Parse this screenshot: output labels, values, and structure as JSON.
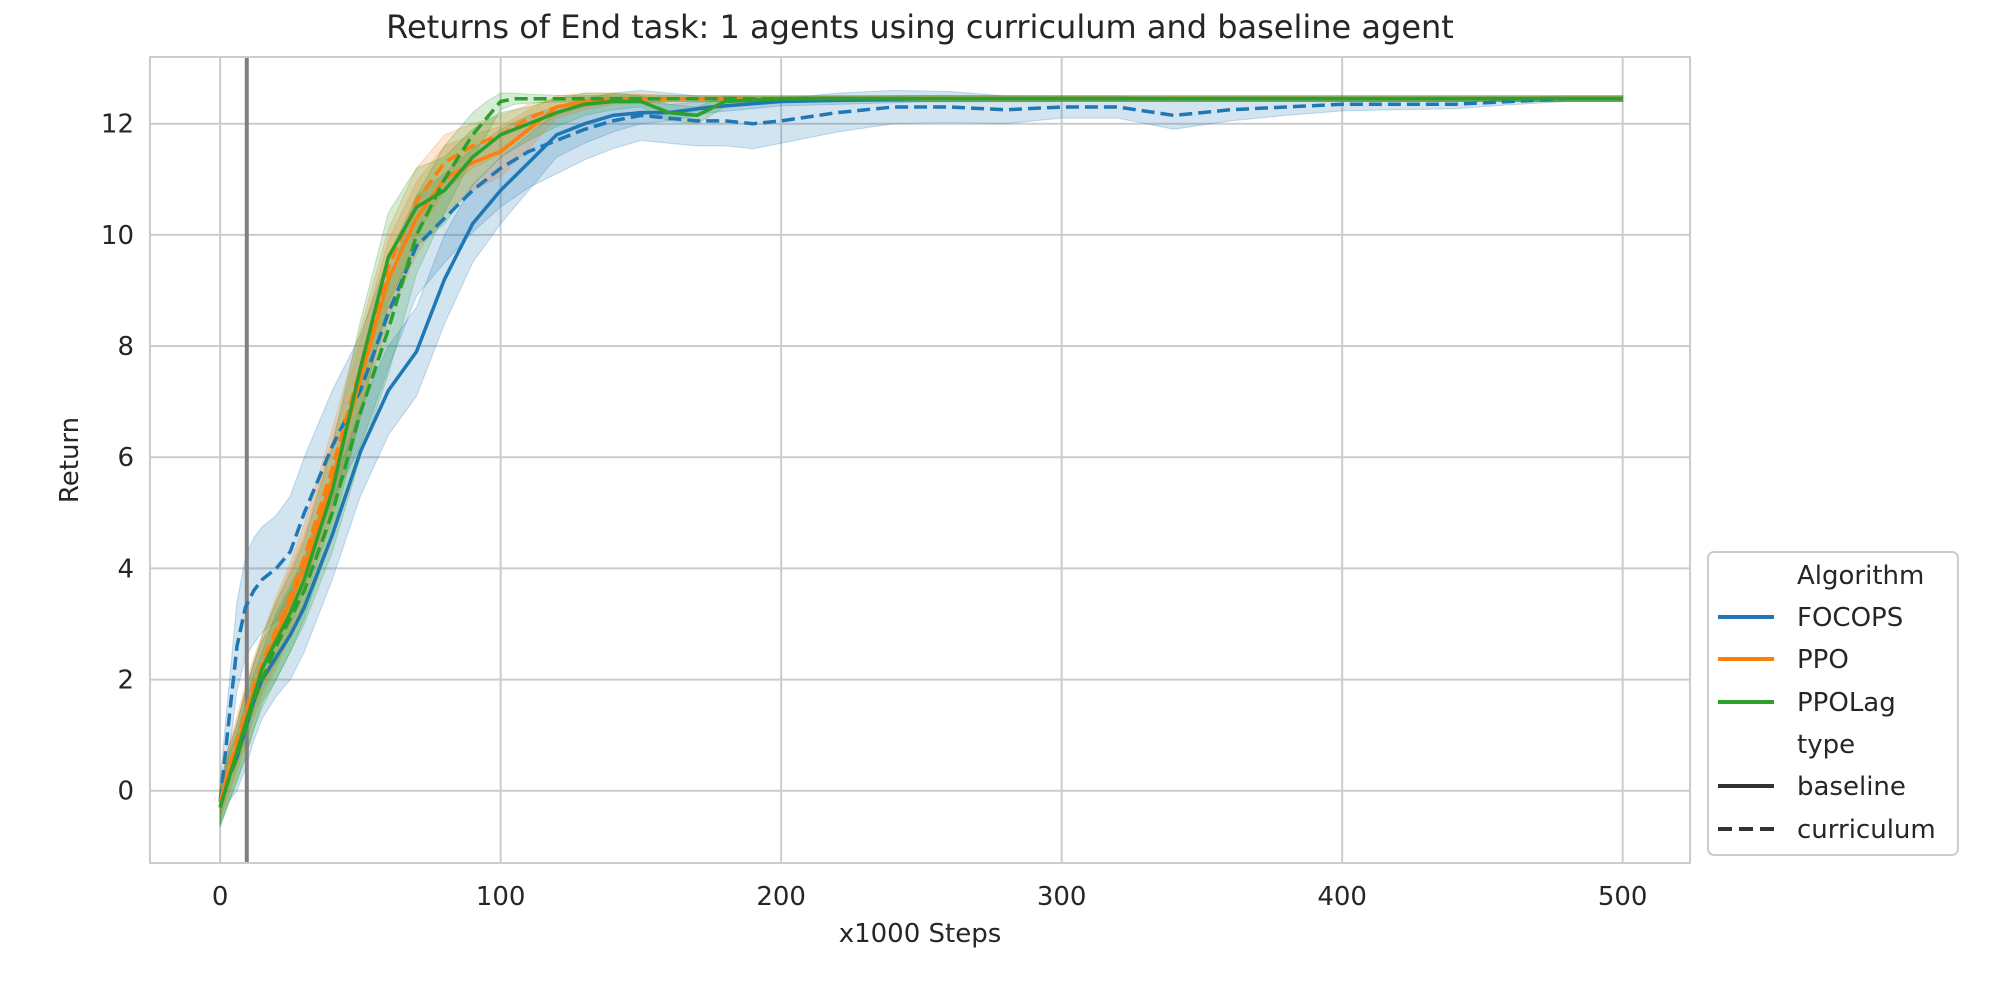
{
  "colors": {
    "FOCOPS": "#1f77b4",
    "PPO": "#ff7f0e",
    "PPOLag": "#2ca02c",
    "vline": "#808080",
    "legend_line": "#333333"
  },
  "chart_data": {
    "type": "line",
    "title": "Returns of End task: 1 agents using curriculum and baseline agent",
    "xlabel": "x1000 Steps",
    "ylabel": "Return",
    "xlim": [
      -25,
      524
    ],
    "ylim": [
      -1.3,
      13.2
    ],
    "xticks": [
      0,
      100,
      200,
      300,
      400,
      500
    ],
    "yticks": [
      0,
      2,
      4,
      6,
      8,
      10,
      12
    ],
    "grid": true,
    "legend_position": "lower-right",
    "vline_x": 9.5,
    "legend": {
      "hue_title": "Algorithm",
      "style_title": "type",
      "hue_entries": [
        "FOCOPS",
        "PPO",
        "PPOLag"
      ],
      "style_entries": [
        "baseline",
        "curriculum"
      ]
    },
    "series": [
      {
        "name": "FOCOPS",
        "type": "baseline",
        "x": [
          0,
          3,
          6,
          9,
          12,
          15,
          20,
          25,
          30,
          40,
          50,
          60,
          70,
          80,
          90,
          100,
          110,
          120,
          130,
          140,
          150,
          160,
          175,
          200,
          250,
          300,
          350,
          400,
          450,
          500
        ],
        "y": [
          -0.3,
          0.3,
          0.6,
          1.1,
          1.6,
          2.0,
          2.4,
          2.8,
          3.3,
          4.6,
          6.1,
          7.2,
          7.9,
          9.2,
          10.2,
          10.8,
          11.3,
          11.8,
          12.0,
          12.15,
          12.2,
          12.2,
          12.3,
          12.4,
          12.45,
          12.45,
          12.45,
          12.45,
          12.45,
          12.45
        ],
        "band": [
          0.35,
          0.5,
          0.6,
          0.7,
          0.7,
          0.7,
          0.7,
          0.8,
          0.8,
          0.8,
          0.8,
          0.8,
          0.8,
          0.8,
          0.7,
          0.6,
          0.5,
          0.4,
          0.35,
          0.3,
          0.2,
          0.15,
          0.1,
          0.08,
          0.06,
          0.05,
          0.05,
          0.05,
          0.05,
          0.05
        ]
      },
      {
        "name": "FOCOPS",
        "type": "curriculum",
        "x": [
          0,
          3,
          6,
          9,
          12,
          15,
          20,
          25,
          30,
          40,
          50,
          60,
          70,
          80,
          90,
          100,
          110,
          120,
          130,
          140,
          150,
          160,
          170,
          180,
          190,
          200,
          220,
          240,
          260,
          280,
          300,
          320,
          340,
          360,
          380,
          400,
          420,
          440,
          460,
          480,
          500
        ],
        "y": [
          -0.2,
          1.2,
          2.6,
          3.3,
          3.6,
          3.8,
          4.0,
          4.3,
          5.0,
          6.2,
          7.2,
          8.6,
          9.8,
          10.3,
          10.8,
          11.2,
          11.5,
          11.7,
          11.9,
          12.05,
          12.15,
          12.1,
          12.05,
          12.05,
          12.0,
          12.05,
          12.2,
          12.3,
          12.3,
          12.25,
          12.3,
          12.3,
          12.15,
          12.25,
          12.3,
          12.35,
          12.35,
          12.35,
          12.4,
          12.45,
          12.45
        ],
        "band": [
          0.4,
          0.6,
          0.8,
          0.9,
          0.95,
          0.95,
          0.95,
          1.0,
          1.0,
          1.0,
          1.0,
          1.0,
          0.9,
          0.8,
          0.75,
          0.7,
          0.65,
          0.6,
          0.55,
          0.5,
          0.45,
          0.45,
          0.45,
          0.45,
          0.45,
          0.4,
          0.35,
          0.3,
          0.28,
          0.25,
          0.2,
          0.2,
          0.25,
          0.2,
          0.15,
          0.12,
          0.1,
          0.08,
          0.06,
          0.05,
          0.05
        ]
      },
      {
        "name": "PPO",
        "type": "baseline",
        "x": [
          0,
          3,
          6,
          9,
          12,
          15,
          20,
          25,
          30,
          40,
          50,
          60,
          70,
          80,
          90,
          100,
          110,
          120,
          130,
          140,
          150,
          160,
          180,
          200,
          250,
          300,
          350,
          400,
          450,
          500
        ],
        "y": [
          -0.2,
          0.3,
          0.8,
          1.3,
          1.8,
          2.2,
          2.8,
          3.4,
          4.0,
          5.6,
          7.4,
          9.2,
          10.3,
          11.0,
          11.3,
          11.5,
          11.9,
          12.3,
          12.4,
          12.45,
          12.45,
          12.45,
          12.45,
          12.45,
          12.45,
          12.45,
          12.45,
          12.45,
          12.45,
          12.45
        ],
        "band": [
          0.3,
          0.4,
          0.45,
          0.5,
          0.5,
          0.5,
          0.6,
          0.6,
          0.6,
          0.7,
          0.7,
          0.7,
          0.65,
          0.6,
          0.5,
          0.45,
          0.35,
          0.2,
          0.15,
          0.1,
          0.08,
          0.06,
          0.05,
          0.05,
          0.05,
          0.05,
          0.05,
          0.05,
          0.05,
          0.05
        ]
      },
      {
        "name": "PPO",
        "type": "curriculum",
        "x": [
          0,
          3,
          6,
          9,
          12,
          15,
          20,
          25,
          30,
          40,
          50,
          60,
          70,
          80,
          90,
          100,
          110,
          120,
          130,
          140,
          160,
          200,
          250,
          300,
          350,
          400,
          450,
          500
        ],
        "y": [
          -0.2,
          0.4,
          0.9,
          1.4,
          1.9,
          2.3,
          2.9,
          3.5,
          4.2,
          5.8,
          7.6,
          9.4,
          10.6,
          11.3,
          11.6,
          11.8,
          12.1,
          12.3,
          12.4,
          12.45,
          12.45,
          12.45,
          12.45,
          12.45,
          12.45,
          12.45,
          12.45,
          12.45
        ],
        "band": [
          0.3,
          0.4,
          0.45,
          0.5,
          0.5,
          0.5,
          0.6,
          0.6,
          0.6,
          0.7,
          0.7,
          0.7,
          0.6,
          0.5,
          0.4,
          0.35,
          0.25,
          0.15,
          0.1,
          0.08,
          0.06,
          0.05,
          0.05,
          0.05,
          0.05,
          0.05,
          0.05,
          0.05
        ]
      },
      {
        "name": "PPOLag",
        "type": "baseline",
        "x": [
          0,
          3,
          6,
          9,
          12,
          15,
          20,
          25,
          30,
          40,
          50,
          60,
          70,
          80,
          90,
          100,
          110,
          120,
          130,
          140,
          150,
          160,
          170,
          180,
          200,
          250,
          300,
          350,
          400,
          450,
          500
        ],
        "y": [
          -0.3,
          0.2,
          0.7,
          1.2,
          1.7,
          2.2,
          2.7,
          3.2,
          3.8,
          5.4,
          7.6,
          9.6,
          10.5,
          10.8,
          11.4,
          11.8,
          12.0,
          12.2,
          12.35,
          12.4,
          12.4,
          12.2,
          12.15,
          12.4,
          12.45,
          12.45,
          12.45,
          12.45,
          12.45,
          12.45,
          12.45
        ],
        "band": [
          0.35,
          0.45,
          0.5,
          0.6,
          0.6,
          0.6,
          0.7,
          0.7,
          0.7,
          0.8,
          0.85,
          0.8,
          0.7,
          0.6,
          0.5,
          0.4,
          0.3,
          0.25,
          0.2,
          0.15,
          0.1,
          0.15,
          0.15,
          0.1,
          0.05,
          0.05,
          0.05,
          0.05,
          0.05,
          0.05,
          0.05
        ]
      },
      {
        "name": "PPOLag",
        "type": "curriculum",
        "x": [
          0,
          3,
          6,
          9,
          12,
          15,
          20,
          25,
          30,
          40,
          50,
          60,
          70,
          80,
          90,
          95,
          100,
          105,
          110,
          120,
          140,
          160,
          200,
          250,
          300,
          350,
          400,
          450,
          500
        ],
        "y": [
          -0.3,
          0.2,
          0.6,
          1.1,
          1.6,
          2.0,
          2.6,
          3.1,
          3.6,
          5.0,
          6.8,
          8.3,
          10.0,
          11.0,
          11.8,
          12.1,
          12.4,
          12.45,
          12.45,
          12.45,
          12.45,
          12.45,
          12.45,
          12.45,
          12.45,
          12.45,
          12.45,
          12.45,
          12.45
        ],
        "band": [
          0.3,
          0.4,
          0.45,
          0.5,
          0.5,
          0.5,
          0.6,
          0.6,
          0.6,
          0.7,
          0.8,
          0.8,
          0.7,
          0.6,
          0.4,
          0.3,
          0.15,
          0.1,
          0.08,
          0.06,
          0.05,
          0.05,
          0.05,
          0.05,
          0.05,
          0.05,
          0.05,
          0.05,
          0.05
        ]
      }
    ]
  }
}
